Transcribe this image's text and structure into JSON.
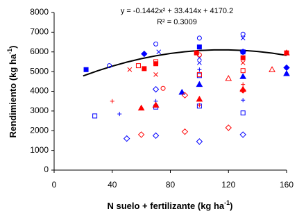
{
  "chart_data": {
    "type": "scatter",
    "annotation": [
      "y = -0.1442x² + 33.414x + 4170.2",
      "R² = 0.3009"
    ],
    "xlabel": {
      "main": "N suelo + fertilizante (kg ha",
      "sup": "-1",
      "end": ")"
    },
    "ylabel": {
      "main": "Rendimiento (kg ha",
      "sup": "-1",
      "end": ")"
    },
    "xlim": [
      0,
      160
    ],
    "xticks": [
      0,
      40,
      80,
      120,
      160
    ],
    "ylim": [
      0,
      8000
    ],
    "yticks": [
      0,
      1000,
      2000,
      3000,
      4000,
      5000,
      6000,
      7000,
      8000
    ],
    "grid": false,
    "series": [
      {
        "marker": "square",
        "filled": true,
        "color": "#0000ff",
        "x": [
          22,
          100,
          130
        ],
        "values": [
          5100,
          6250,
          6000
        ]
      },
      {
        "marker": "square",
        "filled": false,
        "color": "#0000ff",
        "x": [
          28,
          70,
          100,
          130,
          100
        ],
        "values": [
          2750,
          3200,
          3250,
          2900,
          4800
        ]
      },
      {
        "marker": "diamond",
        "filled": true,
        "color": "#0000ff",
        "x": [
          62,
          160,
          130
        ],
        "values": [
          5900,
          5200,
          6000
        ]
      },
      {
        "marker": "diamond",
        "filled": false,
        "color": "#0000ff",
        "x": [
          50,
          70,
          100,
          130,
          70
        ],
        "values": [
          1600,
          1750,
          1450,
          1800,
          4100
        ]
      },
      {
        "marker": "circle",
        "filled": false,
        "color": "#0000ff",
        "x": [
          38,
          70,
          100,
          130
        ],
        "values": [
          5300,
          6400,
          6700,
          6900
        ]
      },
      {
        "marker": "x",
        "filled": false,
        "color": "#0000ff",
        "x": [
          72,
          100,
          130,
          100
        ],
        "values": [
          6000,
          5450,
          6700,
          5700
        ]
      },
      {
        "marker": "plus",
        "filled": false,
        "color": "#0000ff",
        "x": [
          45,
          70,
          130,
          100
        ],
        "values": [
          2850,
          3500,
          3550,
          5100
        ]
      },
      {
        "marker": "triangle",
        "filled": true,
        "color": "#0000ff",
        "x": [
          88,
          100,
          130,
          160,
          70
        ],
        "values": [
          3950,
          4350,
          4750,
          4900,
          3300
        ]
      },
      {
        "marker": "square",
        "filled": true,
        "color": "#ff0000",
        "x": [
          62,
          98,
          130,
          160,
          70
        ],
        "values": [
          5150,
          5950,
          5700,
          5950,
          5400
        ]
      },
      {
        "marker": "square",
        "filled": false,
        "color": "#ff0000",
        "x": [
          58,
          70,
          100,
          130
        ],
        "values": [
          5300,
          5500,
          4850,
          5050
        ]
      },
      {
        "marker": "diamond",
        "filled": false,
        "color": "#ff0000",
        "x": [
          60,
          90,
          120,
          90
        ],
        "values": [
          1800,
          1950,
          2150,
          3800
        ]
      },
      {
        "marker": "triangle",
        "filled": true,
        "color": "#ff0000",
        "x": [
          60,
          100,
          130,
          70
        ],
        "values": [
          3150,
          3600,
          4100,
          3300
        ]
      },
      {
        "marker": "triangle",
        "filled": false,
        "color": "#ff0000",
        "x": [
          120,
          150,
          160
        ],
        "values": [
          4650,
          5100,
          5950
        ]
      },
      {
        "marker": "x",
        "filled": false,
        "color": "#ff0000",
        "x": [
          52,
          70,
          130
        ],
        "values": [
          5100,
          4850,
          5450
        ]
      },
      {
        "marker": "plus",
        "filled": false,
        "color": "#ff0000",
        "x": [
          40,
          100,
          130
        ],
        "values": [
          3500,
          3300,
          4350
        ]
      },
      {
        "marker": "circle",
        "filled": false,
        "color": "#ff0000",
        "x": [
          75,
          100
        ],
        "values": [
          4150,
          5850
        ]
      },
      {
        "marker": "diamond",
        "filled": true,
        "color": "#ff0000",
        "x": [
          130
        ],
        "values": [
          4050
        ]
      }
    ],
    "trendline": {
      "color": "#000000",
      "x": [
        20,
        30,
        40,
        50,
        60,
        70,
        80,
        90,
        100,
        110,
        120,
        130,
        140,
        150,
        160
      ],
      "values": [
        4781,
        5043,
        5276,
        5480,
        5656,
        5803,
        5920,
        6009,
        6070,
        6101,
        6103,
        6077,
        6022,
        5938,
        5825
      ]
    }
  }
}
